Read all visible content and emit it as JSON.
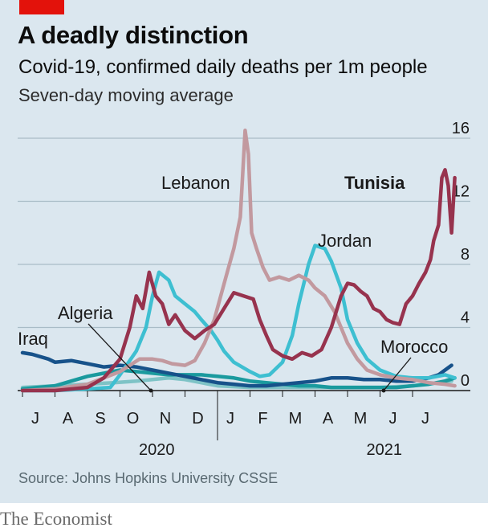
{
  "header": {
    "title": "A deadly distinction",
    "subtitle": "Covid-19, confirmed daily deaths per 1m people",
    "note": "Seven-day moving average"
  },
  "footer": {
    "source": "Source: Johns Hopkins University CSSE",
    "brand": "The Economist"
  },
  "colors": {
    "background": "#dbe7ef",
    "tunisia": "#97334e",
    "lebanon": "#c2999f",
    "jordan": "#3ebfd1",
    "iraq": "#17528a",
    "morocco": "#1a9a9e",
    "algeria": "#7ec3c6",
    "accent": "#e3120b"
  },
  "chart_data": {
    "type": "line",
    "title": "A deadly distinction",
    "ylim": [
      0,
      16
    ],
    "y_ticks": [
      0,
      4,
      8,
      12,
      16
    ],
    "y_tick_labels": [
      "0",
      "4",
      "8",
      "12",
      "16"
    ],
    "x_months": [
      "J",
      "A",
      "S",
      "O",
      "N",
      "D",
      "J",
      "F",
      "M",
      "A",
      "M",
      "J",
      "J"
    ],
    "x_years": [
      {
        "label": "2020",
        "month_index": 4.5
      },
      {
        "label": "2021",
        "month_index": 11.5
      }
    ],
    "x_range_months": [
      0,
      13.3
    ],
    "series": [
      {
        "name": "Algeria",
        "color": "#7ec3c6",
        "x": [
          0,
          1,
          2,
          2.8,
          3.5,
          4,
          4.5,
          5,
          5.5,
          6,
          7,
          8,
          9,
          10,
          11,
          12,
          12.8,
          13.2
        ],
        "y": [
          0.2,
          0.3,
          0.4,
          0.5,
          0.6,
          0.7,
          0.8,
          0.7,
          0.5,
          0.3,
          0.2,
          0.2,
          0.2,
          0.2,
          0.2,
          0.3,
          0.5,
          0.6
        ]
      },
      {
        "name": "Morocco",
        "color": "#1a9a9e",
        "x": [
          0,
          1,
          1.5,
          2,
          2.5,
          3,
          3.5,
          4,
          4.5,
          5,
          5.5,
          6,
          6.5,
          7,
          7.5,
          8,
          8.5,
          9,
          9.5,
          10,
          10.5,
          11,
          11.5,
          12,
          12.5,
          13,
          13.3
        ],
        "y": [
          0.1,
          0.3,
          0.6,
          0.9,
          1.1,
          1.3,
          1.2,
          1.1,
          1.0,
          1.0,
          1.0,
          0.9,
          0.8,
          0.6,
          0.5,
          0.4,
          0.3,
          0.3,
          0.2,
          0.2,
          0.2,
          0.2,
          0.2,
          0.3,
          0.4,
          0.6,
          0.8
        ]
      },
      {
        "name": "Iraq",
        "color": "#17528a",
        "x": [
          0,
          0.3,
          0.8,
          1,
          1.5,
          2,
          2.5,
          3,
          3.5,
          4,
          4.5,
          5,
          5.5,
          6,
          6.5,
          7,
          7.5,
          8,
          8.5,
          9,
          9.5,
          10,
          10.5,
          11,
          11.5,
          12,
          12.5,
          12.8,
          13,
          13.2
        ],
        "y": [
          2.4,
          2.3,
          2.0,
          1.8,
          1.9,
          1.7,
          1.5,
          1.6,
          1.5,
          1.3,
          1.1,
          0.9,
          0.7,
          0.5,
          0.4,
          0.3,
          0.3,
          0.4,
          0.5,
          0.6,
          0.8,
          0.8,
          0.7,
          0.7,
          0.6,
          0.6,
          0.8,
          1.0,
          1.3,
          1.6
        ]
      },
      {
        "name": "Jordan",
        "color": "#3ebfd1",
        "x": [
          0,
          1,
          2,
          2.7,
          3,
          3.5,
          3.8,
          4,
          4.2,
          4.5,
          4.7,
          5,
          5.3,
          5.5,
          5.8,
          6,
          6.2,
          6.5,
          7,
          7.3,
          7.6,
          8,
          8.3,
          8.5,
          8.8,
          9,
          9.3,
          9.5,
          9.8,
          10,
          10.3,
          10.6,
          11,
          11.5,
          12,
          12.5,
          13,
          13.3
        ],
        "y": [
          0,
          0,
          0.1,
          0.2,
          1.0,
          2.5,
          4.0,
          6.0,
          7.5,
          7.0,
          6.0,
          5.5,
          5.0,
          4.5,
          3.8,
          3.2,
          2.5,
          1.8,
          1.2,
          0.9,
          1.0,
          1.8,
          3.5,
          5.5,
          8.0,
          9.2,
          9.0,
          8.2,
          6.5,
          4.5,
          3.0,
          2.0,
          1.3,
          0.9,
          0.8,
          0.8,
          1.0,
          0.8
        ]
      },
      {
        "name": "Lebanon",
        "color": "#c2999f",
        "x": [
          0,
          1,
          2,
          2.5,
          3,
          3.3,
          3.6,
          4,
          4.3,
          4.6,
          5,
          5.3,
          5.6,
          5.9,
          6.1,
          6.3,
          6.5,
          6.7,
          6.85,
          6.95,
          7.05,
          7.2,
          7.4,
          7.6,
          7.9,
          8.2,
          8.5,
          8.8,
          9,
          9.3,
          9.6,
          9.8,
          10,
          10.3,
          10.6,
          11,
          11.5,
          12,
          12.5,
          13,
          13.3
        ],
        "y": [
          0,
          0.1,
          0.4,
          0.8,
          1.2,
          1.6,
          2.0,
          2.0,
          1.9,
          1.7,
          1.6,
          1.9,
          3.0,
          4.5,
          6.0,
          7.5,
          9.0,
          11.0,
          16.5,
          15.0,
          10.0,
          9.0,
          7.8,
          7.0,
          7.2,
          7.0,
          7.3,
          7.0,
          6.5,
          6.0,
          5.0,
          4.0,
          3.0,
          2.0,
          1.3,
          1.0,
          0.8,
          0.7,
          0.5,
          0.4,
          0.3
        ]
      },
      {
        "name": "Tunisia",
        "color": "#97334e",
        "x": [
          0,
          1,
          2,
          2.5,
          3,
          3.3,
          3.5,
          3.7,
          3.9,
          4.1,
          4.3,
          4.5,
          4.7,
          5,
          5.3,
          5.6,
          5.9,
          6.2,
          6.5,
          6.8,
          7.1,
          7.3,
          7.5,
          7.7,
          8,
          8.3,
          8.6,
          8.9,
          9.2,
          9.5,
          9.8,
          10,
          10.2,
          10.4,
          10.6,
          10.8,
          11,
          11.2,
          11.4,
          11.6,
          11.8,
          12,
          12.2,
          12.4,
          12.55,
          12.65,
          12.8,
          12.9,
          13.0,
          13.1,
          13.2,
          13.3
        ],
        "y": [
          0,
          0,
          0.2,
          0.8,
          2.0,
          4.0,
          6.0,
          5.2,
          7.5,
          6.0,
          5.5,
          4.2,
          4.8,
          3.8,
          3.3,
          3.8,
          4.2,
          5.2,
          6.2,
          6.0,
          5.8,
          4.5,
          3.5,
          2.6,
          2.2,
          2.0,
          2.4,
          2.2,
          2.6,
          4.0,
          6.0,
          6.8,
          6.7,
          6.3,
          6.0,
          5.2,
          5.0,
          4.5,
          4.3,
          4.2,
          5.5,
          6.0,
          6.8,
          7.5,
          8.3,
          9.5,
          10.5,
          13.5,
          14.0,
          13.0,
          10.0,
          13.5
        ]
      }
    ],
    "labels": {
      "lebanon": "Lebanon",
      "tunisia": "Tunisia",
      "jordan": "Jordan",
      "algeria": "Algeria",
      "iraq": "Iraq",
      "morocco": "Morocco"
    }
  }
}
